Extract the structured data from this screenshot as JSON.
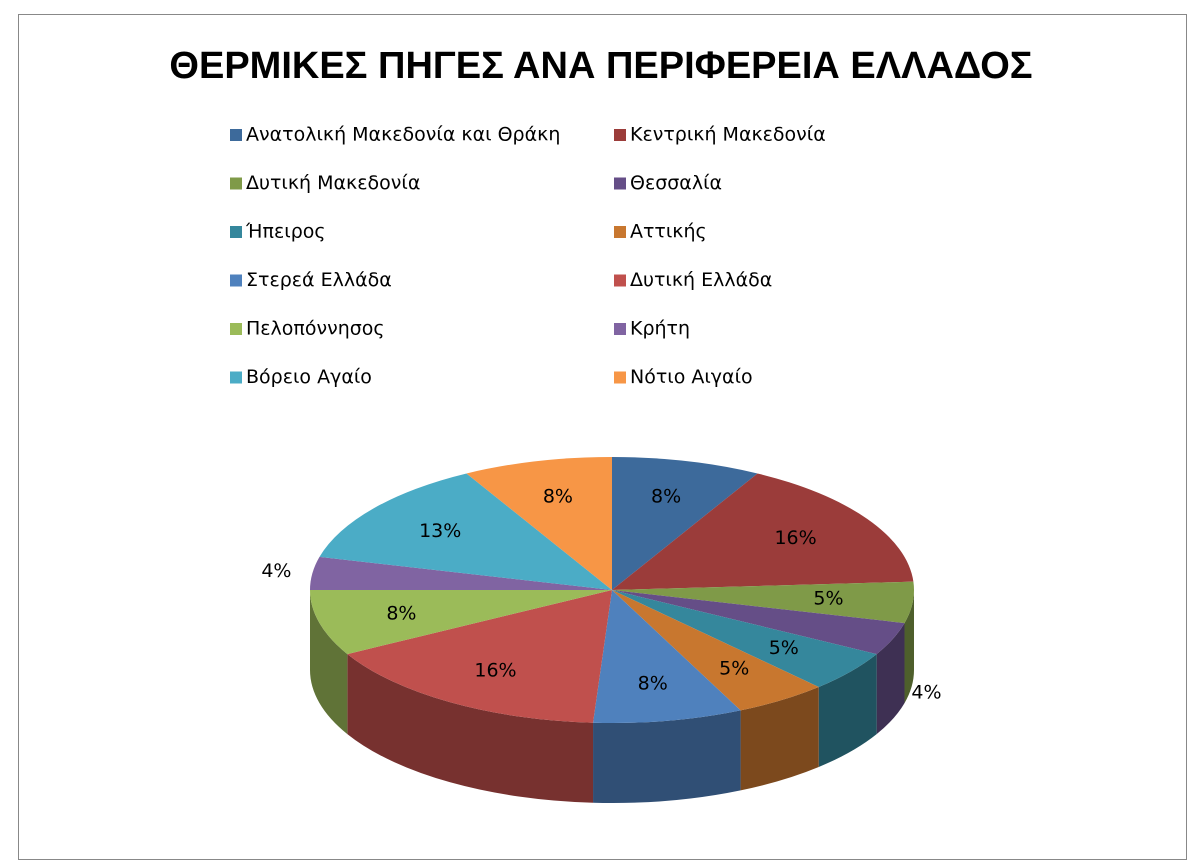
{
  "chart_data": {
    "type": "pie",
    "title": "ΘΕΡΜΙΚΕΣ ΠΗΓΕΣ ΑΝΑ ΠΕΡΙΦΕΡΕΙΑ  ΕΛΛΑΔΟΣ",
    "categories": [
      "Ανατολική Μακεδονία και Θράκη",
      "Κεντρική Μακεδονία",
      "Δυτική Μακεδονία",
      "Θεσσαλία",
      "Ήπειρος",
      "Αττικής",
      "Στερεά Ελλάδα",
      "Δυτική Ελλάδα",
      "Πελοπόννησος",
      "Κρήτη",
      "Βόρειο Αγαίο",
      "Νότιο Αιγαίο"
    ],
    "values": [
      8,
      16,
      5,
      4,
      5,
      5,
      8,
      16,
      8,
      4,
      13,
      8
    ],
    "value_labels": [
      "8%",
      "16%",
      "5%",
      "4%",
      "5%",
      "5%",
      "8%",
      "16%",
      "8%",
      "4%",
      "13%",
      "8%"
    ],
    "colors": [
      "#3D6A9B",
      "#9B3C3A",
      "#7F9A48",
      "#654E87",
      "#35879C",
      "#C8772F",
      "#4F81BD",
      "#C0504D",
      "#9BBB59",
      "#8064A2",
      "#4BACC6",
      "#F79646"
    ],
    "legend": "top"
  }
}
